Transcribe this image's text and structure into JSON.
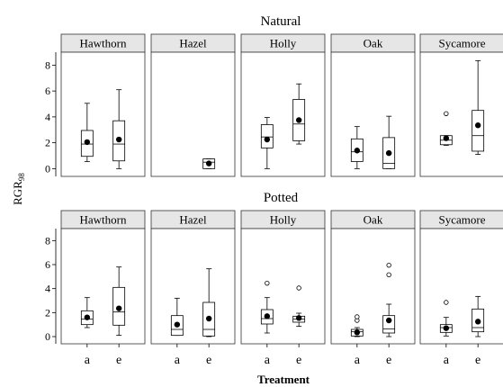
{
  "chart_data": {
    "type": "boxplot",
    "xlabel": "Treatment",
    "ylabel_main": "RGR",
    "ylabel_sub": "98",
    "ylim": [
      -0.6,
      9.0
    ],
    "yticks": [
      0,
      2,
      4,
      6,
      8
    ],
    "categories": [
      "a",
      "e"
    ],
    "facets_columns": [
      "Hawthorn",
      "Hazel",
      "Holly",
      "Oak",
      "Sycamore"
    ],
    "rows": [
      {
        "title": "Natural",
        "panels": [
          {
            "species": "Hawthorn",
            "groups": [
              {
                "treatment": "a",
                "min": 0.55,
                "q1": 0.95,
                "median": 1.9,
                "q3": 2.95,
                "max": 5.05,
                "mean": 2.05,
                "outliers": []
              },
              {
                "treatment": "e",
                "min": 0.0,
                "q1": 0.6,
                "median": 1.9,
                "q3": 3.7,
                "max": 6.1,
                "mean": 2.25,
                "outliers": []
              }
            ]
          },
          {
            "species": "Hazel",
            "groups": [
              {
                "treatment": "e",
                "min": 0.0,
                "q1": 0.0,
                "median": 0.5,
                "q3": 0.75,
                "max": 0.75,
                "mean": 0.4,
                "outliers": []
              }
            ]
          },
          {
            "species": "Holly",
            "groups": [
              {
                "treatment": "a",
                "min": 0.0,
                "q1": 1.6,
                "median": 2.45,
                "q3": 3.4,
                "max": 3.95,
                "mean": 2.25,
                "outliers": []
              },
              {
                "treatment": "e",
                "min": 1.9,
                "q1": 2.15,
                "median": 3.45,
                "q3": 5.35,
                "max": 6.55,
                "mean": 3.75,
                "outliers": []
              }
            ]
          },
          {
            "species": "Oak",
            "groups": [
              {
                "treatment": "a",
                "min": 0.0,
                "q1": 0.55,
                "median": 1.3,
                "q3": 2.3,
                "max": 3.25,
                "mean": 1.4,
                "outliers": []
              },
              {
                "treatment": "e",
                "min": 0.0,
                "q1": 0.0,
                "median": 0.4,
                "q3": 2.4,
                "max": 4.05,
                "mean": 1.2,
                "outliers": []
              }
            ]
          },
          {
            "species": "Sycamore",
            "groups": [
              {
                "treatment": "a",
                "min": 1.8,
                "q1": 1.85,
                "median": 2.2,
                "q3": 2.55,
                "max": 2.55,
                "mean": 2.35,
                "outliers": [
                  4.25
                ]
              },
              {
                "treatment": "e",
                "min": 1.1,
                "q1": 1.35,
                "median": 2.55,
                "q3": 4.5,
                "max": 8.35,
                "mean": 3.35,
                "outliers": []
              }
            ]
          }
        ]
      },
      {
        "title": "Potted",
        "panels": [
          {
            "species": "Hawthorn",
            "groups": [
              {
                "treatment": "a",
                "min": 0.75,
                "q1": 1.0,
                "median": 1.45,
                "q3": 2.15,
                "max": 3.25,
                "mean": 1.6,
                "outliers": []
              },
              {
                "treatment": "e",
                "min": 0.1,
                "q1": 0.95,
                "median": 2.05,
                "q3": 4.1,
                "max": 5.8,
                "mean": 2.35,
                "outliers": []
              }
            ]
          },
          {
            "species": "Hazel",
            "groups": [
              {
                "treatment": "a",
                "min": 0.1,
                "q1": 0.1,
                "median": 0.6,
                "q3": 1.75,
                "max": 3.2,
                "mean": 1.0,
                "outliers": []
              },
              {
                "treatment": "e",
                "min": 0.0,
                "q1": 0.05,
                "median": 0.6,
                "q3": 2.85,
                "max": 5.65,
                "mean": 1.5,
                "outliers": []
              }
            ]
          },
          {
            "species": "Holly",
            "groups": [
              {
                "treatment": "a",
                "min": 0.3,
                "q1": 1.05,
                "median": 1.5,
                "q3": 2.25,
                "max": 3.25,
                "mean": 1.7,
                "outliers": [
                  4.45
                ]
              },
              {
                "treatment": "e",
                "min": 0.85,
                "q1": 1.2,
                "median": 1.45,
                "q3": 1.7,
                "max": 1.95,
                "mean": 1.55,
                "outliers": [
                  4.05
                ]
              }
            ]
          },
          {
            "species": "Oak",
            "groups": [
              {
                "treatment": "a",
                "min": 0.0,
                "q1": 0.05,
                "median": 0.4,
                "q3": 0.6,
                "max": 0.75,
                "mean": 0.35,
                "outliers": [
                  1.35,
                  1.65
                ]
              },
              {
                "treatment": "e",
                "min": 0.0,
                "q1": 0.3,
                "median": 0.65,
                "q3": 1.75,
                "max": 2.7,
                "mean": 1.35,
                "outliers": [
                  5.15,
                  5.95
                ]
              }
            ]
          },
          {
            "species": "Sycamore",
            "groups": [
              {
                "treatment": "a",
                "min": 0.05,
                "q1": 0.35,
                "median": 0.75,
                "q3": 1.0,
                "max": 1.6,
                "mean": 0.7,
                "outliers": [
                  2.85
                ]
              },
              {
                "treatment": "e",
                "min": 0.0,
                "q1": 0.4,
                "median": 0.75,
                "q3": 2.3,
                "max": 3.35,
                "mean": 1.25,
                "outliers": []
              }
            ]
          }
        ]
      }
    ]
  }
}
